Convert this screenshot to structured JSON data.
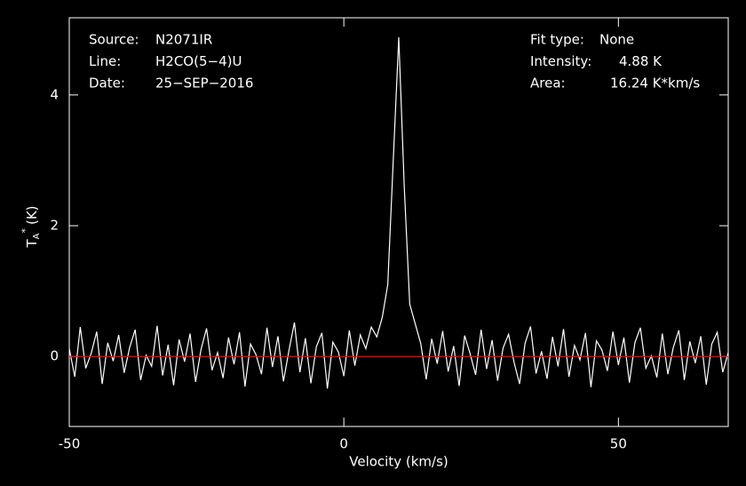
{
  "chart_data": {
    "type": "line",
    "xlabel": "Velocity (km/s)",
    "ylabel": {
      "main": "T",
      "sub": "A",
      "sup": "*",
      "unit": "(K)"
    },
    "info_left": [
      {
        "label": "Source:",
        "value": "N2071IR"
      },
      {
        "label": "Line:",
        "value": "H2CO(5−4)U"
      },
      {
        "label": "Date:",
        "value": "25−SEP−2016"
      }
    ],
    "info_right": [
      {
        "label": "Fit type:",
        "value": "None"
      },
      {
        "label": "Intensity:",
        "value": "4.88 K"
      },
      {
        "label": "Area:",
        "value": "16.24 K*km/s"
      }
    ],
    "x": [
      -50,
      -49,
      -48,
      -47,
      -46,
      -45,
      -44,
      -43,
      -42,
      -41,
      -40,
      -39,
      -38,
      -37,
      -36,
      -35,
      -34,
      -33,
      -32,
      -31,
      -30,
      -29,
      -28,
      -27,
      -26,
      -25,
      -24,
      -23,
      -22,
      -21,
      -20,
      -19,
      -18,
      -17,
      -16,
      -15,
      -14,
      -13,
      -12,
      -11,
      -10,
      -9,
      -8,
      -7,
      -6,
      -5,
      -4,
      -3,
      -2,
      -1,
      0,
      1,
      2,
      3,
      4,
      5,
      6,
      7,
      8,
      9,
      10,
      11,
      12,
      13,
      14,
      15,
      16,
      17,
      18,
      19,
      20,
      21,
      22,
      23,
      24,
      25,
      26,
      27,
      28,
      29,
      30,
      31,
      32,
      33,
      34,
      35,
      36,
      37,
      38,
      39,
      40,
      41,
      42,
      43,
      44,
      45,
      46,
      47,
      48,
      49,
      50,
      51,
      52,
      53,
      54,
      55,
      56,
      57,
      58,
      59,
      60,
      61,
      62,
      63,
      64,
      65,
      66,
      67,
      68,
      69,
      70
    ],
    "series": [
      {
        "color": "#ffffff",
        "values": [
          0.12,
          -0.31,
          0.45,
          -0.18,
          0.05,
          0.38,
          -0.42,
          0.21,
          -0.07,
          0.33,
          -0.25,
          0.14,
          0.41,
          -0.36,
          0.02,
          -0.15,
          0.47,
          -0.29,
          0.18,
          -0.44,
          0.26,
          -0.08,
          0.35,
          -0.39,
          0.11,
          0.43,
          -0.21,
          0.06,
          -0.33,
          0.29,
          -0.12,
          0.37,
          -0.46,
          0.19,
          0.03,
          -0.27,
          0.44,
          -0.16,
          0.31,
          -0.38,
          0.09,
          0.52,
          -0.24,
          0.28,
          -0.41,
          0.15,
          0.36,
          -0.49,
          0.22,
          0.07,
          -0.3,
          0.4,
          -0.14,
          0.33,
          0.12,
          0.45,
          0.3,
          0.6,
          1.1,
          3.0,
          4.88,
          2.6,
          0.8,
          0.5,
          0.2,
          -0.35,
          0.27,
          -0.11,
          0.39,
          -0.23,
          0.16,
          -0.45,
          0.32,
          0.04,
          -0.28,
          0.41,
          -0.19,
          0.25,
          -0.37,
          0.13,
          0.34,
          -0.09,
          -0.42,
          0.2,
          0.46,
          -0.26,
          0.08,
          -0.34,
          0.3,
          -0.15,
          0.42,
          -0.31,
          0.17,
          -0.05,
          0.36,
          -0.47,
          0.24,
          0.1,
          -0.22,
          0.38,
          -0.13,
          0.29,
          -0.4,
          0.21,
          0.44,
          -0.18,
          0.01,
          -0.32,
          0.35,
          -0.27,
          0.14,
          0.4,
          -0.36,
          0.23,
          -0.1,
          0.31,
          -0.43,
          0.19,
          0.37,
          -0.24,
          0.06
        ]
      }
    ],
    "baseline": 0,
    "baseline_color": "#ff0000",
    "xlim": [
      -50,
      70
    ],
    "xticks": [
      -50,
      0,
      50
    ],
    "ylim": [
      -1.07,
      5.18
    ],
    "yticks": [
      0,
      2,
      4
    ]
  }
}
